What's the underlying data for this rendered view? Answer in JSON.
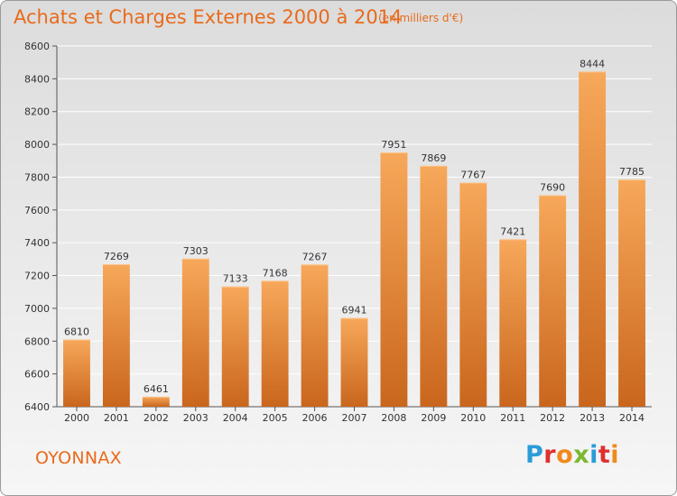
{
  "header": {
    "title": "Achats et Charges Externes 2000 à 2014",
    "subtitle": "(en milliers d'€)"
  },
  "footer": {
    "city": "OYONNAX",
    "logo": "Proxiti"
  },
  "colors": {
    "accent": "#e86b1c",
    "bar_top": "#f7a85a",
    "bar_bottom": "#c9661d",
    "grid": "#ffffff",
    "logo_letters": [
      "#2a9cd8",
      "#e0302d",
      "#f08a1c",
      "#7cb82f",
      "#2a9cd8",
      "#e0302d",
      "#f08a1c"
    ]
  },
  "chart_data": {
    "type": "bar",
    "title": "Achats et Charges Externes 2000 à 2014",
    "subtitle": "(en milliers d'€)",
    "categories": [
      "2000",
      "2001",
      "2002",
      "2003",
      "2004",
      "2005",
      "2006",
      "2007",
      "2008",
      "2009",
      "2010",
      "2011",
      "2012",
      "2013",
      "2014"
    ],
    "values": [
      6810,
      7269,
      6461,
      7303,
      7133,
      7168,
      7267,
      6941,
      7951,
      7869,
      7767,
      7421,
      7690,
      8444,
      7785
    ],
    "xlabel": "",
    "ylabel": "",
    "ylim": [
      6400,
      8600
    ],
    "yticks": [
      6400,
      6600,
      6800,
      7000,
      7200,
      7400,
      7600,
      7800,
      8000,
      8200,
      8400,
      8600
    ],
    "grid": true,
    "data_labels": true
  }
}
